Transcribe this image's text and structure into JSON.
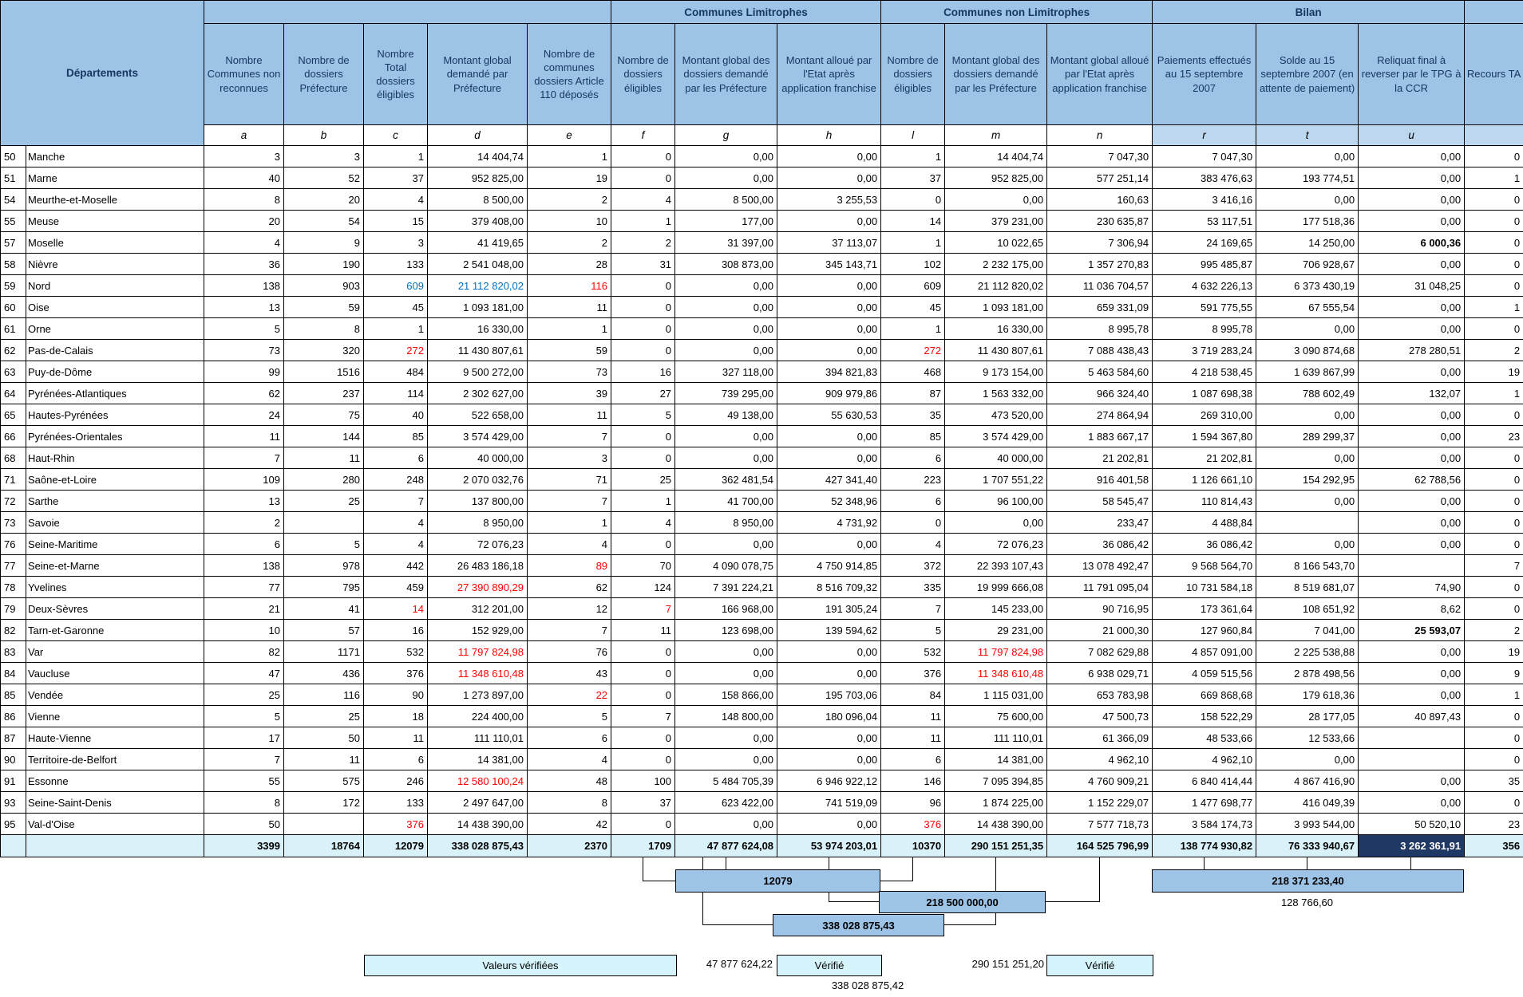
{
  "colors": {
    "header_blue": "#9DC3E6",
    "sub_blue": "#BDD7EE",
    "pale_cyan": "#D9F1F8",
    "dark_navy": "#1F3864",
    "alert_red": "#FF0000",
    "highlight_blue": "#0070C0"
  },
  "table": {
    "corner_label": "Départements",
    "groups": [
      {
        "label": "Communes Limitrophes"
      },
      {
        "label": "Communes non Limitrophes"
      },
      {
        "label": "Bilan"
      }
    ],
    "columns": [
      {
        "letter": "a",
        "label": "Nombre Communes non reconnues"
      },
      {
        "letter": "b",
        "label": "Nombre de dossiers Préfecture"
      },
      {
        "letter": "c",
        "label": "Nombre Total dossiers éligibles"
      },
      {
        "letter": "d",
        "label": "Montant global demandé par Préfecture"
      },
      {
        "letter": "e",
        "label": "Nombre de communes dossiers Article 110 déposés"
      },
      {
        "letter": "f",
        "label": "Nombre de dossiers éligibles"
      },
      {
        "letter": "g",
        "label": "Montant global des dossiers demandé par les Préfecture"
      },
      {
        "letter": "h",
        "label": "Montant alloué par l'Etat après application franchise"
      },
      {
        "letter": "l",
        "label": "Nombre de dossiers éligibles"
      },
      {
        "letter": "m",
        "label": "Montant global des dossiers demandé par les Préfecture"
      },
      {
        "letter": "n",
        "label": "Montant global alloué par l'Etat après application franchise"
      },
      {
        "letter": "r",
        "label": "Paiements effectués au 15 septembre 2007"
      },
      {
        "letter": "t",
        "label": "Solde au 15 septembre 2007 (en attente de paiement)"
      },
      {
        "letter": "u",
        "label": "Reliquat final à reverser par le TPG à la CCR"
      },
      {
        "letter": "",
        "label": "Recours TA"
      }
    ],
    "rows": [
      {
        "code": "50",
        "name": "Manche",
        "v": [
          "3",
          "3",
          "1",
          "14 404,74",
          "1",
          "0",
          "0,00",
          "0,00",
          "1",
          "14 404,74",
          "7 047,30",
          "7 047,30",
          "0,00",
          "0,00",
          "0"
        ]
      },
      {
        "code": "51",
        "name": "Marne",
        "v": [
          "40",
          "52",
          "37",
          "952 825,00",
          "19",
          "0",
          "0,00",
          "0,00",
          "37",
          "952 825,00",
          "577 251,14",
          "383 476,63",
          "193 774,51",
          "0,00",
          "1"
        ]
      },
      {
        "code": "54",
        "name": "Meurthe-et-Moselle",
        "v": [
          "8",
          "20",
          "4",
          "8 500,00",
          "2",
          "4",
          "8 500,00",
          "3 255,53",
          "0",
          "0,00",
          "160,63",
          "3 416,16",
          "0,00",
          "0,00",
          "0"
        ]
      },
      {
        "code": "55",
        "name": "Meuse",
        "v": [
          "20",
          "54",
          "15",
          "379 408,00",
          "10",
          "1",
          "177,00",
          "0,00",
          "14",
          "379 231,00",
          "230 635,87",
          "53 117,51",
          "177 518,36",
          "0,00",
          "0"
        ]
      },
      {
        "code": "57",
        "name": "Moselle",
        "v": [
          "4",
          "9",
          "3",
          "41 419,65",
          "2",
          "2",
          "31 397,00",
          "37 113,07",
          "1",
          "10 022,65",
          "7 306,94",
          "24 169,65",
          "14 250,00",
          "6 000,36",
          "0"
        ],
        "c": {
          "13": "boldc"
        }
      },
      {
        "code": "58",
        "name": "Nièvre",
        "v": [
          "36",
          "190",
          "133",
          "2 541 048,00",
          "28",
          "31",
          "308 873,00",
          "345 143,71",
          "102",
          "2 232 175,00",
          "1 357 270,83",
          "995 485,87",
          "706 928,67",
          "0,00",
          "0"
        ]
      },
      {
        "code": "59",
        "name": "Nord",
        "v": [
          "138",
          "903",
          "609",
          "21 112 820,02",
          "116",
          "0",
          "0,00",
          "0,00",
          "609",
          "21 112 820,02",
          "11 036 704,57",
          "4 632 226,13",
          "6 373 430,19",
          "31 048,25",
          "0"
        ],
        "c": {
          "2": "blue",
          "3": "blue",
          "4": "red"
        }
      },
      {
        "code": "60",
        "name": "Oise",
        "v": [
          "13",
          "59",
          "45",
          "1 093 181,00",
          "11",
          "0",
          "0,00",
          "0,00",
          "45",
          "1 093 181,00",
          "659 331,09",
          "591 775,55",
          "67 555,54",
          "0,00",
          "1"
        ]
      },
      {
        "code": "61",
        "name": "Orne",
        "v": [
          "5",
          "8",
          "1",
          "16 330,00",
          "1",
          "0",
          "0,00",
          "0,00",
          "1",
          "16 330,00",
          "8 995,78",
          "8 995,78",
          "0,00",
          "0,00",
          "0"
        ]
      },
      {
        "code": "62",
        "name": "Pas-de-Calais",
        "v": [
          "73",
          "320",
          "272",
          "11 430 807,61",
          "59",
          "0",
          "0,00",
          "0,00",
          "272",
          "11 430 807,61",
          "7 088 438,43",
          "3 719 283,24",
          "3 090 874,68",
          "278 280,51",
          "2"
        ],
        "c": {
          "2": "red",
          "8": "red"
        }
      },
      {
        "code": "63",
        "name": "Puy-de-Dôme",
        "v": [
          "99",
          "1516",
          "484",
          "9 500 272,00",
          "73",
          "16",
          "327 118,00",
          "394 821,83",
          "468",
          "9 173 154,00",
          "5 463 584,60",
          "4 218 538,45",
          "1 639 867,99",
          "0,00",
          "19"
        ]
      },
      {
        "code": "64",
        "name": "Pyrénées-Atlantiques",
        "v": [
          "62",
          "237",
          "114",
          "2 302 627,00",
          "39",
          "27",
          "739 295,00",
          "909 979,86",
          "87",
          "1 563 332,00",
          "966 324,40",
          "1 087 698,38",
          "788 602,49",
          "132,07",
          "1"
        ]
      },
      {
        "code": "65",
        "name": "Hautes-Pyrénées",
        "v": [
          "24",
          "75",
          "40",
          "522 658,00",
          "11",
          "5",
          "49 138,00",
          "55 630,53",
          "35",
          "473 520,00",
          "274 864,94",
          "269 310,00",
          "0,00",
          "0,00",
          "0"
        ]
      },
      {
        "code": "66",
        "name": "Pyrénées-Orientales",
        "v": [
          "11",
          "144",
          "85",
          "3 574 429,00",
          "7",
          "0",
          "0,00",
          "0,00",
          "85",
          "3 574 429,00",
          "1 883 667,17",
          "1 594 367,80",
          "289 299,37",
          "0,00",
          "23"
        ]
      },
      {
        "code": "68",
        "name": "Haut-Rhin",
        "v": [
          "7",
          "11",
          "6",
          "40 000,00",
          "3",
          "0",
          "0,00",
          "0,00",
          "6",
          "40 000,00",
          "21 202,81",
          "21 202,81",
          "0,00",
          "0,00",
          "0"
        ]
      },
      {
        "code": "71",
        "name": "Saône-et-Loire",
        "v": [
          "109",
          "280",
          "248",
          "2 070 032,76",
          "71",
          "25",
          "362 481,54",
          "427 341,40",
          "223",
          "1 707 551,22",
          "916 401,58",
          "1 126 661,10",
          "154 292,95",
          "62 788,56",
          "0"
        ]
      },
      {
        "code": "72",
        "name": "Sarthe",
        "v": [
          "13",
          "25",
          "7",
          "137 800,00",
          "7",
          "1",
          "41 700,00",
          "52 348,96",
          "6",
          "96 100,00",
          "58 545,47",
          "110 814,43",
          "0,00",
          "0,00",
          "0"
        ]
      },
      {
        "code": "73",
        "name": "Savoie",
        "v": [
          "2",
          "",
          "4",
          "8 950,00",
          "1",
          "4",
          "8 950,00",
          "4 731,92",
          "0",
          "0,00",
          "233,47",
          "4 488,84",
          "",
          "0,00",
          "0"
        ]
      },
      {
        "code": "76",
        "name": "Seine-Maritime",
        "v": [
          "6",
          "5",
          "4",
          "72 076,23",
          "4",
          "0",
          "0,00",
          "0,00",
          "4",
          "72 076,23",
          "36 086,42",
          "36 086,42",
          "0,00",
          "0,00",
          "0"
        ]
      },
      {
        "code": "77",
        "name": "Seine-et-Marne",
        "v": [
          "138",
          "978",
          "442",
          "26 483 186,18",
          "89",
          "70",
          "4 090 078,75",
          "4 750 914,85",
          "372",
          "22 393 107,43",
          "13 078 492,47",
          "9 568 564,70",
          "8 166 543,70",
          "",
          "7"
        ],
        "c": {
          "4": "red"
        }
      },
      {
        "code": "78",
        "name": "Yvelines",
        "v": [
          "77",
          "795",
          "459",
          "27 390 890,29",
          "62",
          "124",
          "7 391 224,21",
          "8 516 709,32",
          "335",
          "19 999 666,08",
          "11 791 095,04",
          "10 731 584,18",
          "8 519 681,07",
          "74,90",
          "0"
        ],
        "c": {
          "3": "red"
        }
      },
      {
        "code": "79",
        "name": "Deux-Sèvres",
        "v": [
          "21",
          "41",
          "14",
          "312 201,00",
          "12",
          "7",
          "166 968,00",
          "191 305,24",
          "7",
          "145 233,00",
          "90 716,95",
          "173 361,64",
          "108 651,92",
          "8,62",
          "0"
        ],
        "c": {
          "2": "red",
          "5": "red"
        }
      },
      {
        "code": "82",
        "name": "Tarn-et-Garonne",
        "v": [
          "10",
          "57",
          "16",
          "152 929,00",
          "7",
          "11",
          "123 698,00",
          "139 594,62",
          "5",
          "29 231,00",
          "21 000,30",
          "127 960,84",
          "7 041,00",
          "25 593,07",
          "2"
        ],
        "c": {
          "13": "boldc"
        }
      },
      {
        "code": "83",
        "name": "Var",
        "v": [
          "82",
          "1171",
          "532",
          "11 797 824,98",
          "76",
          "0",
          "0,00",
          "0,00",
          "532",
          "11 797 824,98",
          "7 082 629,88",
          "4 857 091,00",
          "2 225 538,88",
          "0,00",
          "19"
        ],
        "c": {
          "3": "red",
          "9": "red"
        }
      },
      {
        "code": "84",
        "name": "Vaucluse",
        "v": [
          "47",
          "436",
          "376",
          "11 348 610,48",
          "43",
          "0",
          "0,00",
          "0,00",
          "376",
          "11 348 610,48",
          "6 938 029,71",
          "4 059 515,56",
          "2 878 498,56",
          "0,00",
          "9"
        ],
        "c": {
          "3": "red",
          "9": "red"
        }
      },
      {
        "code": "85",
        "name": "Vendée",
        "v": [
          "25",
          "116",
          "90",
          "1 273 897,00",
          "22",
          "0",
          "158 866,00",
          "195 703,06",
          "84",
          "1 115 031,00",
          "653 783,98",
          "669 868,68",
          "179 618,36",
          "0,00",
          "1"
        ],
        "c": {
          "4": "red"
        }
      },
      {
        "code": "86",
        "name": "Vienne",
        "v": [
          "5",
          "25",
          "18",
          "224 400,00",
          "5",
          "7",
          "148 800,00",
          "180 096,04",
          "11",
          "75 600,00",
          "47 500,73",
          "158 522,29",
          "28 177,05",
          "40 897,43",
          "0"
        ]
      },
      {
        "code": "87",
        "name": "Haute-Vienne",
        "v": [
          "17",
          "50",
          "11",
          "111 110,01",
          "6",
          "0",
          "0,00",
          "0,00",
          "11",
          "111 110,01",
          "61 366,09",
          "48 533,66",
          "12 533,66",
          "",
          "0"
        ]
      },
      {
        "code": "90",
        "name": "Territoire-de-Belfort",
        "v": [
          "7",
          "11",
          "6",
          "14 381,00",
          "4",
          "0",
          "0,00",
          "0,00",
          "6",
          "14 381,00",
          "4 962,10",
          "4 962,10",
          "0,00",
          "",
          "0"
        ]
      },
      {
        "code": "91",
        "name": "Essonne",
        "v": [
          "55",
          "575",
          "246",
          "12 580 100,24",
          "48",
          "100",
          "5 484 705,39",
          "6 946 922,12",
          "146",
          "7 095 394,85",
          "4 760 909,21",
          "6 840 414,44",
          "4 867 416,90",
          "0,00",
          "35"
        ],
        "c": {
          "3": "red"
        }
      },
      {
        "code": "93",
        "name": "Seine-Saint-Denis",
        "v": [
          "8",
          "172",
          "133",
          "2 497 647,00",
          "8",
          "37",
          "623 422,00",
          "741 519,09",
          "96",
          "1 874 225,00",
          "1 152 229,07",
          "1 477 698,77",
          "416 049,39",
          "0,00",
          "0"
        ]
      },
      {
        "code": "95",
        "name": "Val-d'Oise",
        "v": [
          "50",
          "",
          "376",
          "14 438 390,00",
          "42",
          "0",
          "0,00",
          "0,00",
          "376",
          "14 438 390,00",
          "7 577 718,73",
          "3 584 174,73",
          "3 993 544,00",
          "50 520,10",
          "23"
        ],
        "c": {
          "2": "red",
          "8": "red"
        }
      }
    ],
    "totals": {
      "values": [
        "3399",
        "18764",
        "12079",
        "338 028 875,43",
        "2370",
        "1709",
        "47 877 624,08",
        "53 974 203,01",
        "10370",
        "290 151 251,35",
        "164 525 796,99",
        "138 774 930,82",
        "76 333 940,67",
        "3 262 361,91",
        "356"
      ],
      "dark_index": 13
    }
  },
  "annotations": {
    "box_12079": "12079",
    "box_218500000": "218 500 000,00",
    "box_338028875_43": "338 028 875,43",
    "box_218371233": "218 371 233,40",
    "text_128766": "128 766,60",
    "valeurs_verifiees": "Valeurs vérifiées",
    "text_47877624": "47 877 624,22",
    "verifie_1": "Vérifié",
    "text_290151251": "290 151 251,20",
    "verifie_2": "Vérifié",
    "text_338028875_42": "338 028 875,42"
  }
}
